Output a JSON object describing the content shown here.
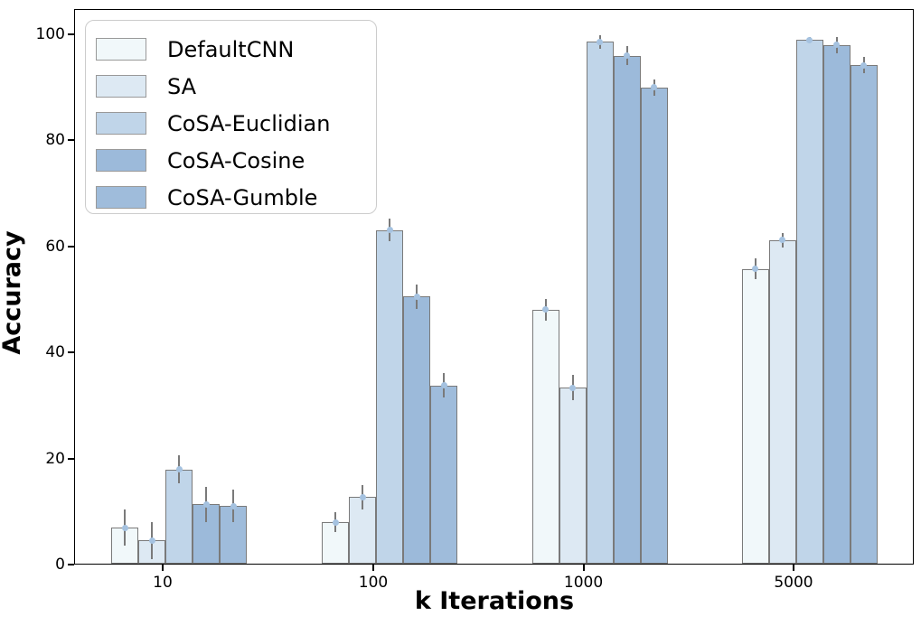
{
  "figure": {
    "ylabel": "Accuracy",
    "xlabel": "k Iterations"
  },
  "chart_data": {
    "type": "bar",
    "title": "",
    "xlabel": "k Iterations",
    "ylabel": "Accuracy",
    "categories": [
      "10",
      "100",
      "1000",
      "5000"
    ],
    "yticks": [
      0,
      20,
      40,
      60,
      80,
      100
    ],
    "ylim": [
      0,
      104.8
    ],
    "grid": false,
    "legend_position": "upper left",
    "error_bars": true,
    "colors": {
      "bar_edge": "#7a7a7a",
      "error_line": "#7a7a7a",
      "mean_marker": "#a5c2e0",
      "spine": "#000000",
      "background": "#ffffff"
    },
    "series": [
      {
        "name": "DefaultCNN",
        "color": "#f1f8fa",
        "values": [
          6.8,
          7.8,
          47.9,
          55.6
        ],
        "errors": [
          3.4,
          1.9,
          2.1,
          1.9
        ]
      },
      {
        "name": "SA",
        "color": "#dde9f3",
        "values": [
          4.4,
          12.6,
          33.2,
          61.0
        ],
        "errors": [
          3.5,
          2.3,
          2.4,
          1.3
        ]
      },
      {
        "name": "CoSA-Euclidian",
        "color": "#c0d5e9",
        "values": [
          17.8,
          62.9,
          98.4,
          98.8
        ],
        "errors": [
          2.6,
          2.1,
          1.3,
          0.5
        ]
      },
      {
        "name": "CoSA-Cosine",
        "color": "#9cbada",
        "values": [
          11.2,
          50.4,
          95.8,
          97.8
        ],
        "errors": [
          3.3,
          2.3,
          1.8,
          1.6
        ]
      },
      {
        "name": "CoSA-Gumble",
        "color": "#9fbcdb",
        "values": [
          10.9,
          33.6,
          89.8,
          94.0
        ],
        "errors": [
          3.1,
          2.3,
          1.5,
          1.5
        ]
      }
    ]
  }
}
